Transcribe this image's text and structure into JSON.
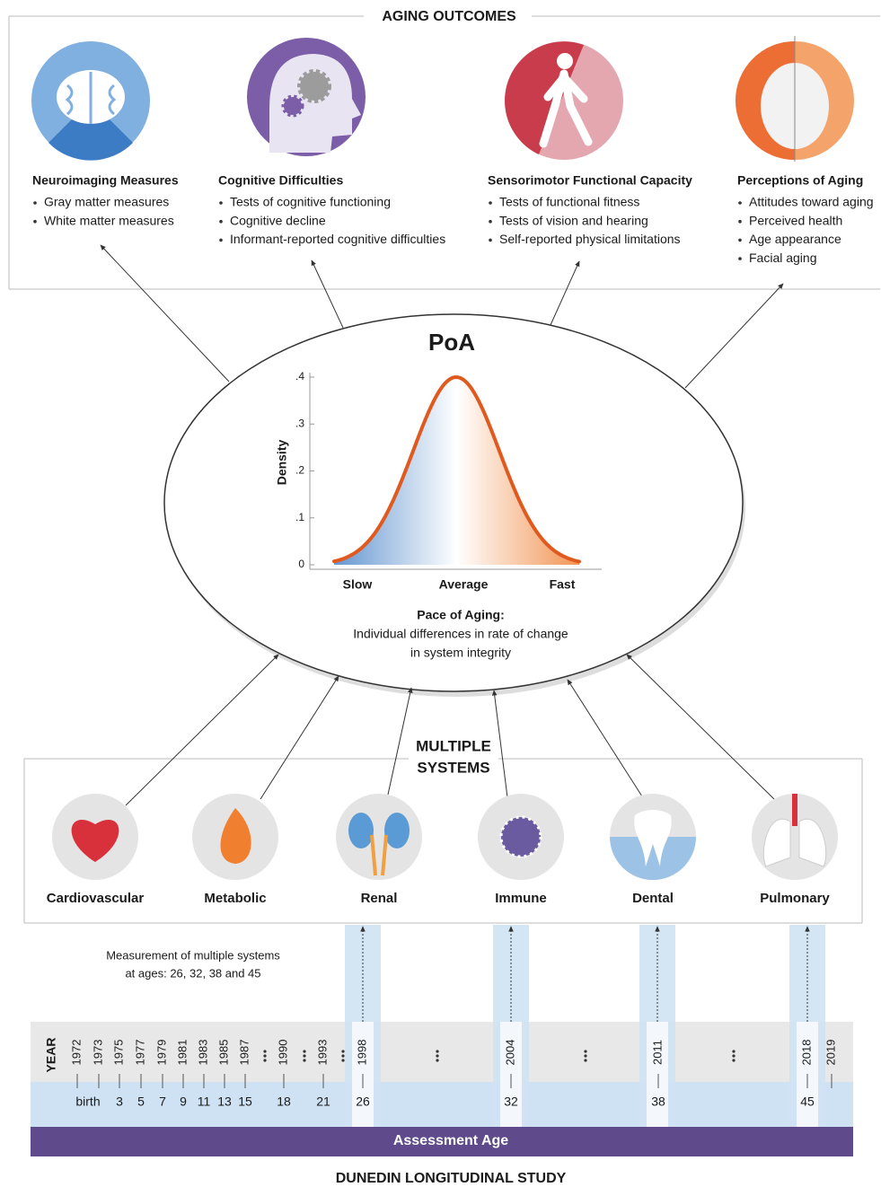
{
  "header": {
    "title": "AGING OUTCOMES"
  },
  "outcomes": [
    {
      "title": "Neuroimaging Measures",
      "items": [
        "Gray matter measures",
        "White matter measures"
      ]
    },
    {
      "title": "Cognitive Difficulties",
      "items": [
        "Tests of cognitive functioning",
        "Cognitive decline",
        "Informant-reported cognitive difficulties"
      ]
    },
    {
      "title": "Sensorimotor Functional Capacity",
      "items": [
        "Tests of functional fitness",
        "Tests of vision and hearing",
        "Self-reported physical limitations"
      ]
    },
    {
      "title": "Perceptions of Aging",
      "items": [
        "Attitudes toward aging",
        "Perceived health",
        "Age appearance",
        "Facial aging"
      ]
    }
  ],
  "poa": {
    "title": "PoA",
    "y_axis_label": "Density",
    "yticks": [
      ".4",
      ".3",
      ".2",
      ".1",
      "0"
    ],
    "x_labels": [
      "Slow",
      "Average",
      "Fast"
    ],
    "caption_title": "Pace of Aging:",
    "caption_lines": [
      "Individual differences in rate of change",
      "in system integrity"
    ]
  },
  "systems": {
    "title_lines": [
      "MULTIPLE",
      "SYSTEMS"
    ],
    "items": [
      "Cardiovascular",
      "Metabolic",
      "Renal",
      "Immune",
      "Dental",
      "Pulmonary"
    ]
  },
  "timeline": {
    "note_lines": [
      "Measurement of multiple systems",
      "at ages:  26, 32, 38 and 45"
    ],
    "year_label": "YEAR",
    "years": [
      "1972",
      "1973",
      "1975",
      "1977",
      "1979",
      "1981",
      "1983",
      "1985",
      "1987",
      "1990",
      "1993",
      "1998",
      "2004",
      "2011",
      "2018",
      "2019"
    ],
    "ages": [
      "birth",
      "3",
      "5",
      "7",
      "9",
      "11",
      "13",
      "15",
      "18",
      "21",
      "26",
      "32",
      "38",
      "45"
    ],
    "band_label": "Assessment Age"
  },
  "footer": {
    "title": "DUNEDIN LONGITUDINAL STUDY"
  }
}
